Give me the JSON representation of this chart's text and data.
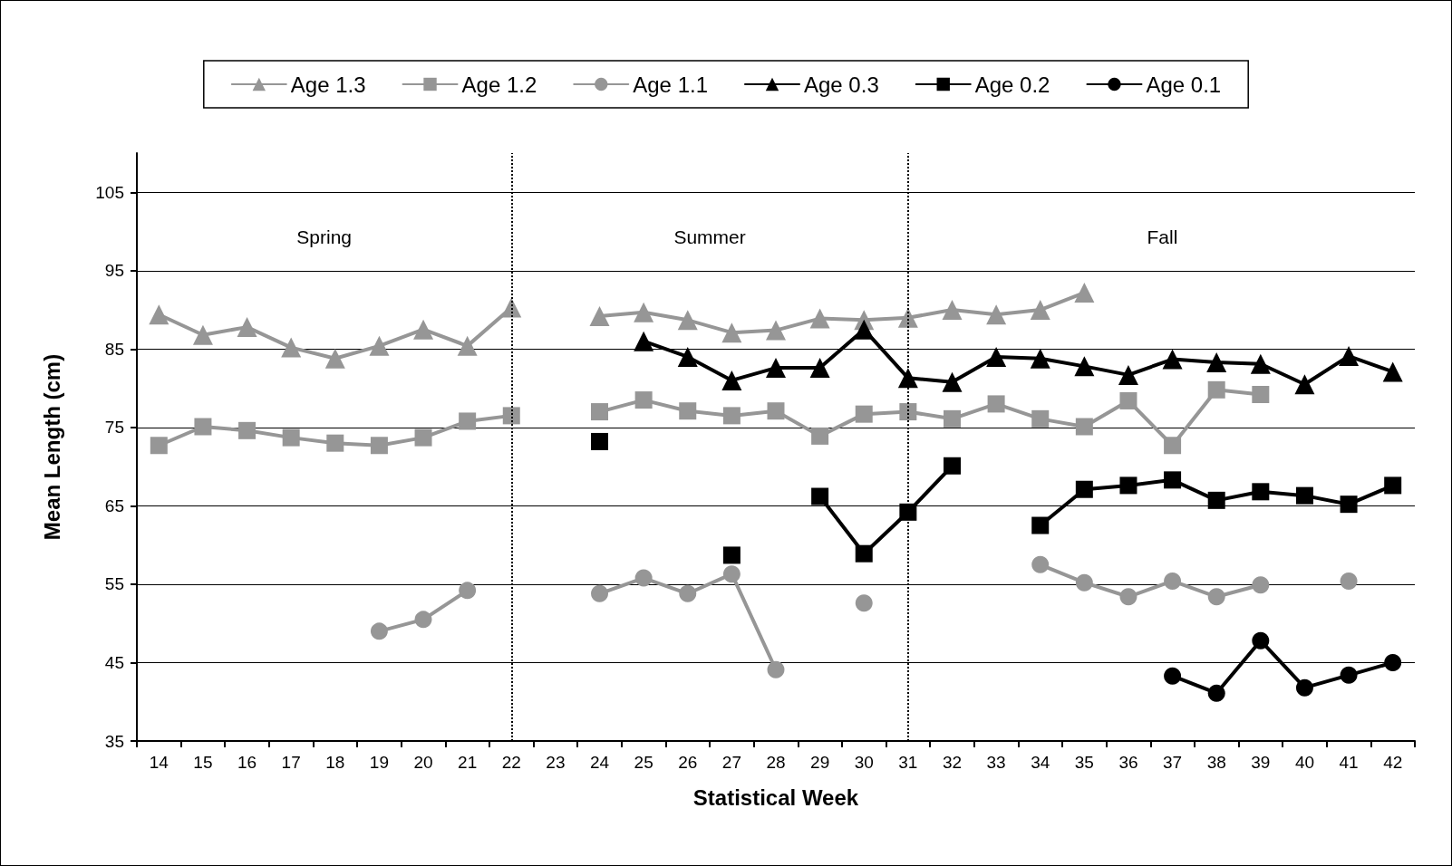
{
  "chart_data": {
    "type": "line",
    "xlabel": "Statistical Week",
    "ylabel": "Mean Length (cm)",
    "categories": [
      "14",
      "15",
      "16",
      "17",
      "18",
      "19",
      "20",
      "21",
      "22",
      "23",
      "24",
      "25",
      "26",
      "27",
      "28",
      "29",
      "30",
      "31",
      "32",
      "33",
      "34",
      "35",
      "36",
      "37",
      "38",
      "39",
      "40",
      "41",
      "42"
    ],
    "series": [
      {
        "name": "Age 1.3",
        "color": "#969696",
        "marker": "triangle",
        "values": [
          89.4,
          86.8,
          87.8,
          85.2,
          83.8,
          85.4,
          87.5,
          85.4,
          90.3,
          null,
          89.2,
          89.7,
          88.7,
          87.1,
          87.4,
          88.9,
          88.7,
          89.0,
          90.0,
          89.4,
          90.0,
          92.2,
          null,
          null,
          null,
          null,
          null,
          null,
          null
        ]
      },
      {
        "name": "Age 1.2",
        "color": "#969696",
        "marker": "square",
        "values": [
          72.7,
          75.1,
          74.6,
          73.7,
          73.0,
          72.7,
          73.7,
          75.8,
          76.5,
          null,
          77.0,
          78.5,
          77.1,
          76.5,
          77.1,
          73.9,
          76.7,
          77.0,
          76.1,
          78.0,
          76.1,
          75.1,
          78.4,
          72.7,
          79.8,
          79.2,
          null,
          null,
          null
        ]
      },
      {
        "name": "Age 1.1",
        "color": "#969696",
        "marker": "circle",
        "values": [
          null,
          null,
          null,
          null,
          null,
          49.0,
          50.5,
          54.2,
          null,
          null,
          53.8,
          55.8,
          53.8,
          56.3,
          44.1,
          null,
          52.6,
          null,
          null,
          null,
          57.5,
          55.2,
          53.4,
          55.4,
          53.4,
          54.9,
          null,
          55.4,
          null
        ]
      },
      {
        "name": "Age 0.3",
        "color": "#000000",
        "marker": "triangle",
        "values": [
          null,
          null,
          null,
          null,
          null,
          null,
          null,
          null,
          null,
          null,
          null,
          86.0,
          84.0,
          81.0,
          82.6,
          82.6,
          87.5,
          81.3,
          80.8,
          84.0,
          83.8,
          82.8,
          81.7,
          83.7,
          83.3,
          83.1,
          80.5,
          84.1,
          82.1
        ]
      },
      {
        "name": "Age 0.2",
        "color": "#000000",
        "marker": "square",
        "values": [
          null,
          null,
          null,
          null,
          null,
          null,
          null,
          null,
          null,
          null,
          73.2,
          null,
          null,
          58.7,
          null,
          66.2,
          58.9,
          64.2,
          70.1,
          null,
          62.5,
          67.1,
          67.6,
          68.3,
          65.7,
          66.8,
          66.3,
          65.2,
          67.6
        ]
      },
      {
        "name": "Age 0.1",
        "color": "#000000",
        "marker": "circle",
        "values": [
          null,
          null,
          null,
          null,
          null,
          null,
          null,
          null,
          null,
          null,
          null,
          null,
          null,
          null,
          null,
          null,
          null,
          null,
          null,
          null,
          null,
          null,
          null,
          43.3,
          41.1,
          47.8,
          41.8,
          43.4,
          45.0
        ]
      }
    ],
    "ylim": [
      35,
      110
    ],
    "yticks": [
      35,
      45,
      55,
      65,
      75,
      85,
      95,
      105
    ],
    "grid": "y",
    "legend": "top",
    "ref_lines": [
      {
        "axis": "x",
        "value": "22",
        "color": "#000000",
        "line_style": "dotted"
      },
      {
        "axis": "x",
        "value": "31",
        "color": "#000000",
        "line_style": "dotted"
      }
    ],
    "annotations": [
      "Spring",
      "Summer",
      "Fall"
    ]
  }
}
